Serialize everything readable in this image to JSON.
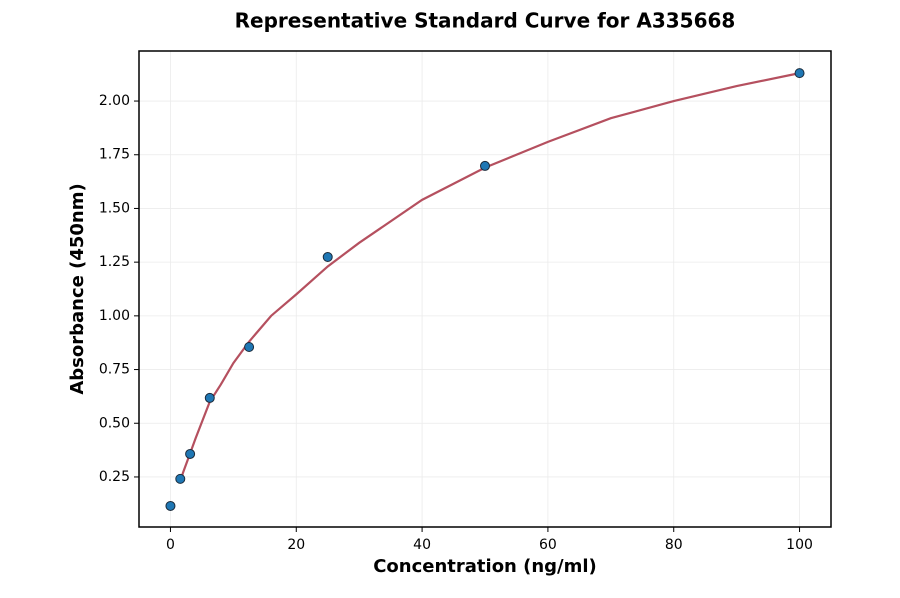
{
  "chart_data": {
    "type": "scatter",
    "title": "Representative Standard Curve for A335668",
    "x_label": "Concentration (ng/ml)",
    "y_label": "Absorbance (450nm)",
    "xlim": [
      -5,
      105
    ],
    "ylim": [
      0.017,
      2.233
    ],
    "xticks": [
      0,
      20,
      40,
      60,
      80,
      100
    ],
    "yticks": [
      {
        "value": 0.25,
        "label": "0.25"
      },
      {
        "value": 0.5,
        "label": "0.50"
      },
      {
        "value": 0.75,
        "label": "0.75"
      },
      {
        "value": 1,
        "label": "1.00"
      },
      {
        "value": 1.25,
        "label": "1.25"
      },
      {
        "value": 1.5,
        "label": "1.50"
      },
      {
        "value": 1.75,
        "label": "1.75"
      },
      {
        "value": 2,
        "label": "2.00"
      }
    ],
    "grid": true,
    "points": {
      "color": "#1f77b4",
      "x": [
        0,
        1.5625,
        3.125,
        6.25,
        12.5,
        25,
        50,
        100
      ],
      "values": [
        0.115,
        0.241,
        0.357,
        0.618,
        0.855,
        1.274,
        1.698,
        2.13
      ]
    },
    "curve": {
      "color": "#b5505f",
      "x": [
        1.5625,
        2,
        3.125,
        4,
        6.25,
        8,
        10,
        12.5,
        16,
        20,
        25,
        30,
        40,
        50,
        60,
        70,
        80,
        90,
        100
      ],
      "values": [
        0.23,
        0.27,
        0.36,
        0.43,
        0.6,
        0.68,
        0.78,
        0.88,
        1.0,
        1.1,
        1.23,
        1.34,
        1.54,
        1.69,
        1.81,
        1.92,
        2.0,
        2.07,
        2.13
      ]
    }
  }
}
